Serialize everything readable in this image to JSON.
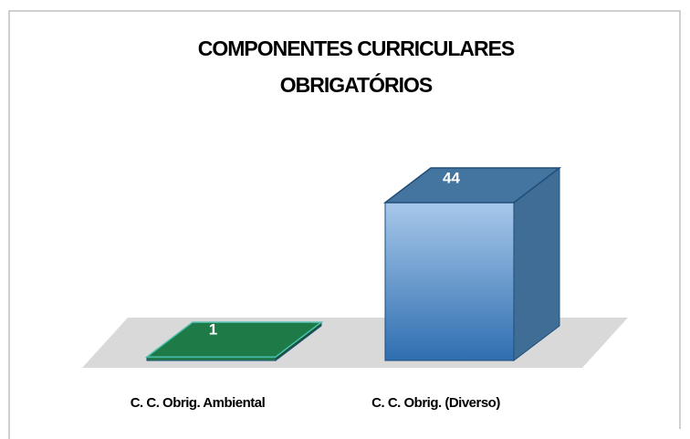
{
  "chart_data": {
    "type": "bar3d",
    "title": [
      "COMPONENTES CURRICULARES",
      "OBRIGATÓRIOS"
    ],
    "categories": [
      "C. C. Obrig. Ambiental",
      "C. C. Obrig. (Diverso)"
    ],
    "values": [
      1,
      44
    ],
    "colors": [
      "#1e7a46",
      "#5b9bd5"
    ]
  }
}
